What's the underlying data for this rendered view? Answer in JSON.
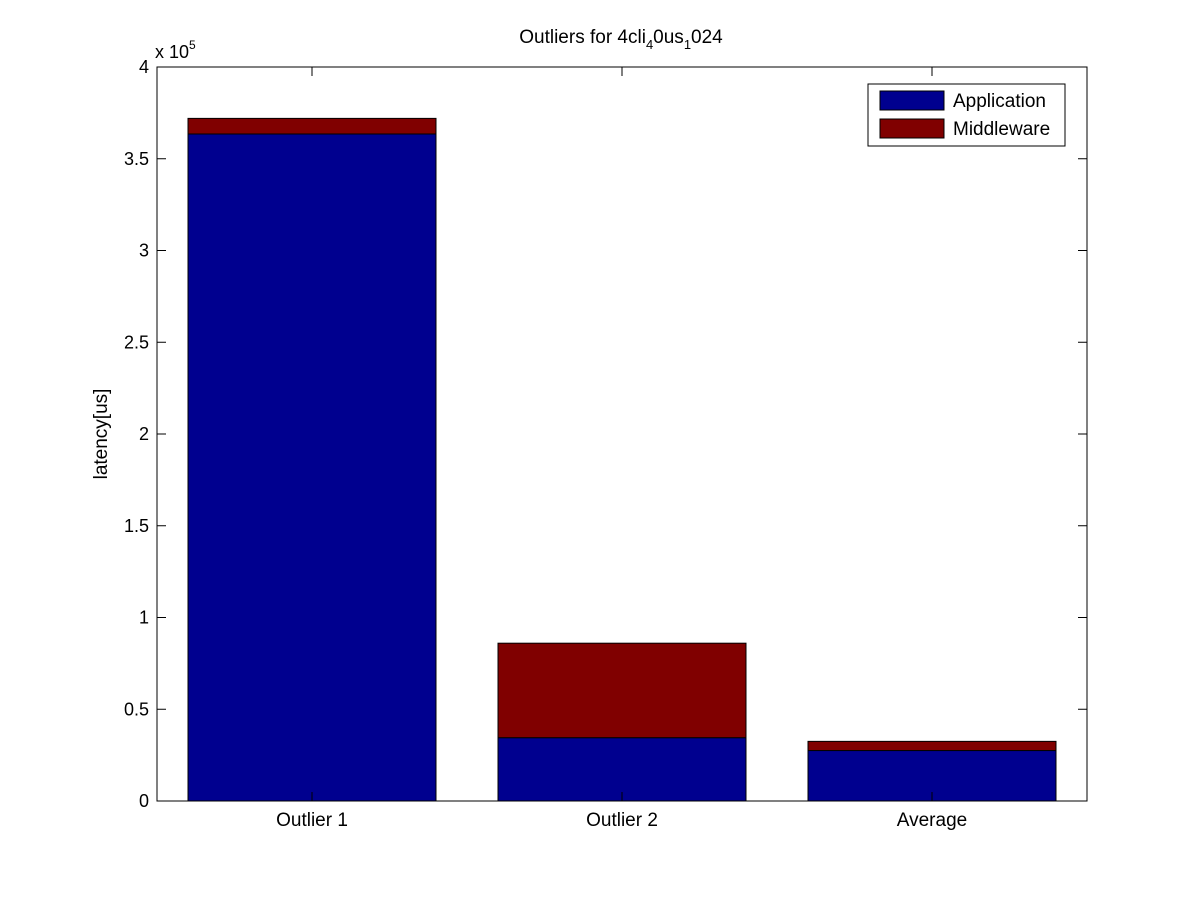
{
  "chart_data": {
    "type": "bar",
    "stacked": true,
    "title": "Outliers for 4cli_4 0us_1 024",
    "title_parts": {
      "a": "Outliers for 4cli",
      "sub1": "4",
      "b": "0us",
      "sub2": "1",
      "c": "024"
    },
    "xlabel": "",
    "ylabel": "latency[us]",
    "y_exponent_label": {
      "base": "x 10",
      "exp": "5"
    },
    "ylim": [
      0,
      400000
    ],
    "yticks": [
      0,
      50000,
      100000,
      150000,
      200000,
      250000,
      300000,
      350000,
      400000
    ],
    "ytick_labels": [
      "0",
      "0.5",
      "1",
      "1.5",
      "2",
      "2.5",
      "3",
      "3.5",
      "4"
    ],
    "categories": [
      "Outlier 1",
      "Outlier 2",
      "Average"
    ],
    "series": [
      {
        "name": "Application",
        "color": "#00008f",
        "values": [
          363500,
          34500,
          27500
        ]
      },
      {
        "name": "Middleware",
        "color": "#800000",
        "values": [
          8500,
          51500,
          5000
        ]
      }
    ],
    "legend_position": "top-right",
    "grid": false
  }
}
